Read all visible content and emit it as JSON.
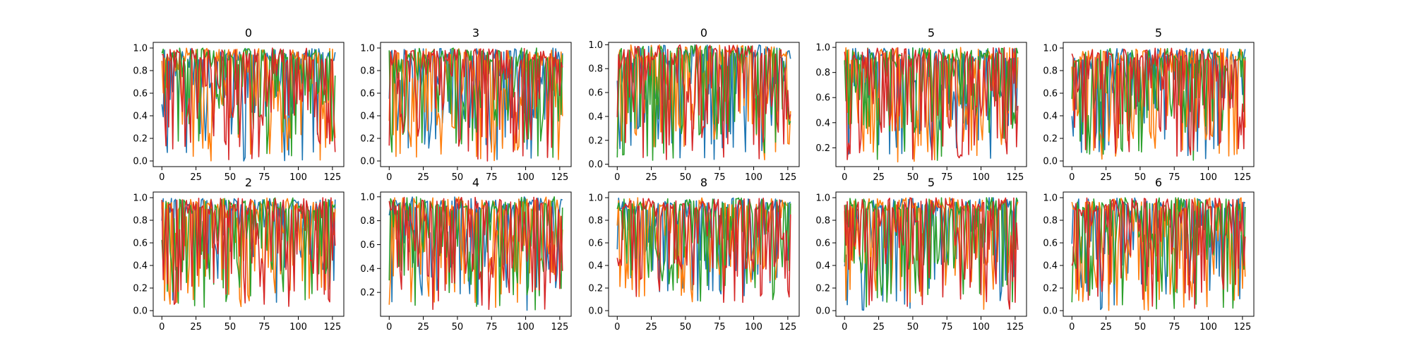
{
  "chart_data": {
    "type": "line",
    "layout": "2x5 grid of subplots",
    "x_range": [
      0,
      127
    ],
    "x_ticks": [
      0,
      25,
      50,
      75,
      100,
      125
    ],
    "series_colors": [
      "#1f77b4",
      "#ff7f0e",
      "#2ca02c",
      "#d62728"
    ],
    "note_values": "Each panel shows 4 series of 128 points with values in [0, 1]; exact per-point values are too dense to read and are approximated.",
    "panels": [
      {
        "title": "0",
        "ylim": [
          -0.05,
          1.05
        ],
        "y_ticks": [
          "0.0",
          "0.2",
          "0.4",
          "0.6",
          "0.8",
          "1.0"
        ],
        "seed": 11,
        "min_level": 0.0
      },
      {
        "title": "3",
        "ylim": [
          -0.05,
          1.05
        ],
        "y_ticks": [
          "0.0",
          "0.2",
          "0.4",
          "0.6",
          "0.8",
          "1.0"
        ],
        "seed": 23,
        "min_level": 0.0
      },
      {
        "title": "0",
        "ylim": [
          -0.02,
          1.02
        ],
        "y_ticks": [
          "0.0",
          "0.2",
          "0.4",
          "0.6",
          "0.8",
          "1.0"
        ],
        "seed": 37,
        "min_level": 0.03
      },
      {
        "title": "5",
        "ylim": [
          0.05,
          1.04
        ],
        "y_ticks": [
          "0.2",
          "0.4",
          "0.6",
          "0.8",
          "1.0"
        ],
        "seed": 41,
        "min_level": 0.08
      },
      {
        "title": "5",
        "ylim": [
          -0.05,
          1.05
        ],
        "y_ticks": [
          "0.0",
          "0.2",
          "0.4",
          "0.6",
          "0.8",
          "1.0"
        ],
        "seed": 53,
        "min_level": 0.0
      },
      {
        "title": "2",
        "ylim": [
          -0.05,
          1.05
        ],
        "y_ticks": [
          "0.0",
          "0.2",
          "0.4",
          "0.6",
          "0.8",
          "1.0"
        ],
        "seed": 61,
        "min_level": 0.01
      },
      {
        "title": "4",
        "ylim": [
          0.0,
          1.04
        ],
        "y_ticks": [
          "0.2",
          "0.4",
          "0.6",
          "0.8",
          "1.0"
        ],
        "seed": 73,
        "min_level": 0.05
      },
      {
        "title": "8",
        "ylim": [
          -0.05,
          1.05
        ],
        "y_ticks": [
          "0.0",
          "0.2",
          "0.4",
          "0.6",
          "0.8",
          "1.0"
        ],
        "seed": 89,
        "min_level": 0.07
      },
      {
        "title": "5",
        "ylim": [
          -0.05,
          1.05
        ],
        "y_ticks": [
          "0.0",
          "0.2",
          "0.4",
          "0.6",
          "0.8",
          "1.0"
        ],
        "seed": 97,
        "min_level": 0.0
      },
      {
        "title": "6",
        "ylim": [
          -0.05,
          1.05
        ],
        "y_ticks": [
          "0.0",
          "0.2",
          "0.4",
          "0.6",
          "0.8",
          "1.0"
        ],
        "seed": 101,
        "min_level": 0.0
      }
    ]
  }
}
